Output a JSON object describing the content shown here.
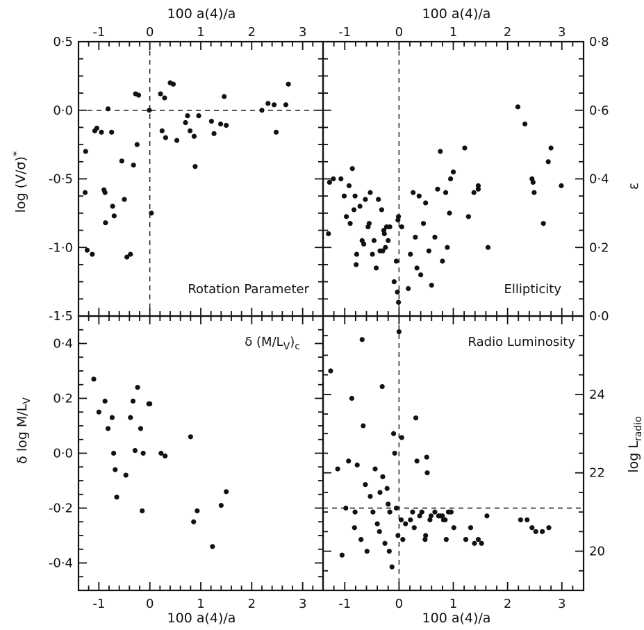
{
  "chart_data": [
    {
      "type": "scatter",
      "panel": "top-left",
      "title": "Rotation Parameter",
      "xlabel": "100 a(4)/a",
      "ylabel": "log (V/σ)*",
      "xlim": [
        -1.4,
        3.4
      ],
      "ylim": [
        -1.5,
        0.5
      ],
      "yticks": [
        "0·5",
        "0·0",
        "-0·5",
        "-1·0",
        "-1·5"
      ],
      "ytick_values": [
        0.5,
        0.0,
        -0.5,
        -1.0,
        -1.5
      ],
      "xticks": [
        "-1",
        "0",
        "1",
        "2",
        "3"
      ],
      "xtick_values": [
        -1,
        0,
        1,
        2,
        3
      ],
      "ref_lines": {
        "x": 0,
        "y": 0
      },
      "x": [
        -1.27,
        -1.13,
        -1.23,
        -1.26,
        -1.08,
        -1.04,
        -0.95,
        -0.9,
        -0.88,
        -0.87,
        -0.82,
        -0.75,
        -0.73,
        -0.7,
        -0.55,
        -0.5,
        -0.45,
        -0.38,
        -0.32,
        -0.28,
        -0.25,
        -0.22,
        -0.01,
        0.03,
        0.21,
        0.29,
        0.24,
        0.31,
        0.4,
        0.46,
        0.53,
        0.7,
        0.74,
        0.79,
        0.87,
        0.89,
        0.96,
        1.21,
        1.26,
        1.39,
        1.46,
        1.5,
        2.2,
        2.32,
        2.44,
        2.48,
        2.67,
        2.72
      ],
      "y": [
        -0.6,
        -1.05,
        -1.02,
        -0.3,
        -0.15,
        -0.13,
        -0.16,
        -0.58,
        -0.6,
        -0.82,
        0.01,
        -0.16,
        -0.7,
        -0.77,
        -0.37,
        -0.65,
        -1.07,
        -1.05,
        -0.4,
        0.12,
        -0.25,
        0.11,
        0.0,
        -0.75,
        0.12,
        0.09,
        -0.15,
        -0.2,
        0.2,
        0.19,
        -0.22,
        -0.09,
        -0.04,
        -0.15,
        -0.19,
        -0.41,
        -0.04,
        -0.08,
        -0.17,
        -0.1,
        0.1,
        -0.11,
        0.0,
        0.05,
        0.04,
        -0.16,
        0.04,
        0.19
      ]
    },
    {
      "type": "scatter",
      "panel": "top-right",
      "title": "Ellipticity",
      "xlabel": "100 a(4)/a",
      "ylabel": "ε",
      "xlim": [
        -1.4,
        3.4
      ],
      "ylim": [
        0.0,
        0.8
      ],
      "yticks": [
        "0·8",
        "0·6",
        "0·4",
        "0·2",
        "0·0"
      ],
      "ytick_values": [
        0.8,
        0.6,
        0.4,
        0.2,
        0.0
      ],
      "xticks": [
        "-1",
        "0",
        "1",
        "2",
        "3"
      ],
      "xtick_values": [
        -1,
        0,
        1,
        2,
        3
      ],
      "ref_lines": {
        "x": 0
      },
      "x": [
        -1.3,
        -1.28,
        -1.21,
        -1.07,
        -1.01,
        -0.97,
        -0.92,
        -0.9,
        -0.86,
        -0.83,
        -0.81,
        -0.79,
        -0.78,
        -0.72,
        -0.68,
        -0.65,
        -0.62,
        -0.57,
        -0.55,
        -0.53,
        -0.49,
        -0.46,
        -0.42,
        -0.38,
        -0.35,
        -0.32,
        -0.3,
        -0.28,
        -0.27,
        -0.25,
        -0.23,
        -0.2,
        -0.17,
        -0.09,
        -0.05,
        -0.03,
        -0.02,
        -0.01,
        -0.01,
        0.05,
        0.17,
        0.21,
        0.26,
        0.3,
        0.33,
        0.37,
        0.4,
        0.45,
        0.49,
        0.55,
        0.6,
        0.66,
        0.71,
        0.76,
        0.8,
        0.86,
        0.89,
        0.93,
        0.95,
        1.0,
        1.21,
        1.28,
        1.38,
        1.46,
        1.46,
        1.64,
        2.19,
        2.32,
        2.45,
        2.47,
        2.49,
        2.66,
        2.75,
        2.8,
        2.99
      ],
      "y": [
        0.24,
        0.39,
        0.4,
        0.4,
        0.35,
        0.29,
        0.38,
        0.27,
        0.43,
        0.31,
        0.35,
        0.15,
        0.18,
        0.32,
        0.22,
        0.21,
        0.34,
        0.26,
        0.27,
        0.36,
        0.18,
        0.22,
        0.14,
        0.34,
        0.19,
        0.31,
        0.19,
        0.25,
        0.24,
        0.2,
        0.26,
        0.22,
        0.26,
        0.1,
        0.16,
        0.07,
        0.28,
        0.29,
        0.04,
        0.26,
        0.08,
        0.18,
        0.36,
        0.23,
        0.14,
        0.35,
        0.12,
        0.27,
        0.33,
        0.19,
        0.09,
        0.23,
        0.37,
        0.48,
        0.16,
        0.36,
        0.2,
        0.3,
        0.4,
        0.42,
        0.49,
        0.29,
        0.36,
        0.37,
        0.38,
        0.2,
        0.61,
        0.56,
        0.4,
        0.39,
        0.36,
        0.27,
        0.45,
        0.49,
        0.38
      ]
    },
    {
      "type": "scatter",
      "panel": "bottom-left",
      "title": "δ (M/L_V)_c",
      "xlabel": "100 a(4)/a",
      "ylabel": "δ log M/L_V",
      "xlim": [
        -1.4,
        3.4
      ],
      "ylim": [
        -0.5,
        0.5
      ],
      "yticks": [
        "0·4",
        "0·2",
        "0·0",
        "-0·2",
        "-0·4"
      ],
      "ytick_values": [
        0.4,
        0.2,
        0.0,
        -0.2,
        -0.4
      ],
      "xticks": [
        "-1",
        "0",
        "1",
        "2",
        "3"
      ],
      "xtick_values": [
        -1,
        0,
        1,
        2,
        3
      ],
      "x": [
        -1.1,
        -1.0,
        -0.88,
        -0.82,
        -0.74,
        -0.71,
        -0.68,
        -0.65,
        -0.47,
        -0.38,
        -0.33,
        -0.29,
        -0.24,
        -0.18,
        -0.15,
        -0.13,
        -0.02,
        0.0,
        0.22,
        0.3,
        0.8,
        0.86,
        0.93,
        1.23,
        1.4,
        1.5
      ],
      "y": [
        0.27,
        0.15,
        0.19,
        0.09,
        0.13,
        0.0,
        -0.06,
        -0.16,
        -0.08,
        0.13,
        0.19,
        0.01,
        0.24,
        0.09,
        -0.21,
        0.0,
        0.18,
        0.18,
        0.0,
        -0.01,
        0.06,
        -0.25,
        -0.21,
        -0.34,
        -0.19,
        -0.14
      ]
    },
    {
      "type": "scatter",
      "panel": "bottom-right",
      "title": "Radio Luminosity",
      "xlabel": "100 a(4)/a",
      "ylabel": "log L_radio",
      "xlim": [
        -1.4,
        3.4
      ],
      "ylim": [
        19.0,
        26.0
      ],
      "yticks": [
        "24",
        "22",
        "20"
      ],
      "ytick_values": [
        24,
        22,
        20
      ],
      "xticks": [
        "-1",
        "0",
        "1",
        "2",
        "3"
      ],
      "xtick_values": [
        -1,
        0,
        1,
        2,
        3
      ],
      "ref_lines": {
        "x": 0,
        "y": 21.1
      },
      "x": [
        -1.26,
        -1.13,
        -1.05,
        -0.98,
        -0.93,
        -0.87,
        -0.82,
        -0.81,
        -0.77,
        -0.7,
        -0.68,
        -0.66,
        -0.62,
        -0.59,
        -0.53,
        -0.48,
        -0.44,
        -0.4,
        -0.36,
        -0.35,
        -0.31,
        -0.3,
        -0.26,
        -0.22,
        -0.2,
        -0.18,
        -0.17,
        -0.13,
        -0.1,
        -0.08,
        -0.05,
        -0.02,
        0.0,
        0.04,
        0.05,
        0.07,
        0.12,
        0.21,
        0.25,
        0.28,
        0.31,
        0.33,
        0.38,
        0.42,
        0.48,
        0.49,
        0.51,
        0.52,
        0.57,
        0.59,
        0.66,
        0.73,
        0.76,
        0.8,
        0.82,
        0.85,
        0.87,
        0.91,
        0.96,
        1.01,
        1.23,
        1.32,
        1.39,
        1.46,
        1.52,
        1.62,
        2.24,
        2.36,
        2.45,
        2.52,
        2.64,
        2.76
      ],
      "y": [
        24.6,
        22.1,
        19.9,
        21.1,
        22.3,
        23.9,
        20.6,
        21.0,
        22.2,
        20.3,
        25.4,
        23.2,
        21.7,
        20.0,
        21.4,
        21.0,
        22.1,
        20.7,
        20.5,
        21.5,
        24.2,
        21.9,
        20.2,
        21.6,
        21.2,
        20.0,
        21.0,
        19.6,
        23.0,
        22.5,
        21.1,
        20.4,
        25.6,
        20.8,
        22.9,
        20.3,
        20.7,
        20.8,
        21.0,
        20.6,
        23.4,
        22.3,
        20.9,
        21.0,
        20.3,
        20.4,
        22.4,
        22.0,
        20.8,
        20.9,
        21.0,
        20.9,
        20.9,
        20.9,
        20.8,
        20.8,
        20.3,
        21.0,
        21.0,
        20.6,
        20.3,
        20.6,
        20.2,
        20.3,
        20.2,
        20.9,
        20.8,
        20.8,
        20.6,
        20.5,
        20.5,
        20.6
      ]
    }
  ]
}
